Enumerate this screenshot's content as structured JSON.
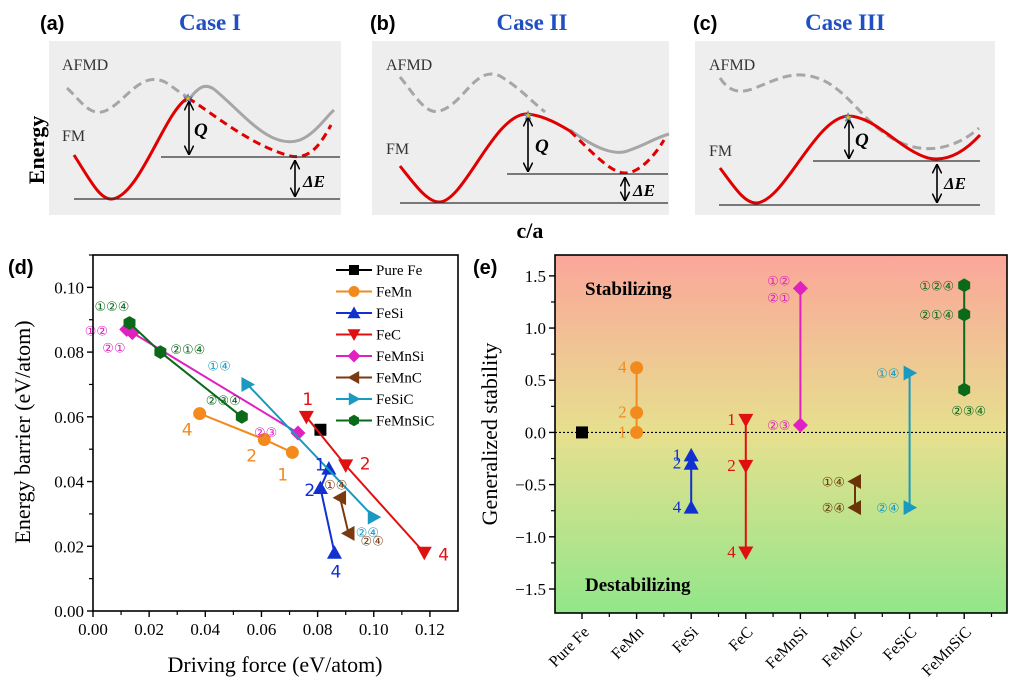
{
  "top_panels": {
    "ylabel": "Energy",
    "xlabel": "c/a",
    "panels": [
      {
        "tag": "(a)",
        "title": "Case I",
        "afmd_label": "AFMD",
        "fm_label": "FM",
        "q_label": "Q",
        "de_label": "ΔE"
      },
      {
        "tag": "(b)",
        "title": "Case II",
        "afmd_label": "AFMD",
        "fm_label": "FM",
        "q_label": "Q",
        "de_label": "ΔE"
      },
      {
        "tag": "(c)",
        "title": "Case III",
        "afmd_label": "AFMD",
        "fm_label": "FM",
        "q_label": "Q",
        "de_label": "ΔE"
      }
    ],
    "colors": {
      "fm": "#e00000",
      "afmd": "#a6a6a6",
      "panel_bg": "#eeeeee",
      "star": "#e8c000"
    }
  },
  "chart_data": [
    {
      "id": "d",
      "tag": "(d)",
      "type": "line",
      "xlabel": "Driving force (eV/atom)",
      "ylabel": "Energy barrier (eV/atom)",
      "xlim": [
        0.0,
        0.13
      ],
      "ylim": [
        0.0,
        0.11
      ],
      "xticks": [
        "0.00",
        "0.02",
        "0.04",
        "0.06",
        "0.08",
        "0.10",
        "0.12"
      ],
      "xtick_values": [
        0.0,
        0.02,
        0.04,
        0.06,
        0.08,
        0.1,
        0.12
      ],
      "yticks": [
        "0.00",
        "0.02",
        "0.04",
        "0.06",
        "0.08",
        "0.10"
      ],
      "ytick_values": [
        0.0,
        0.02,
        0.04,
        0.06,
        0.08,
        0.1
      ],
      "legend_position": "top-right",
      "series": [
        {
          "name": "Pure Fe",
          "color": "#000000",
          "marker": "square",
          "points": [
            {
              "x": 0.081,
              "y": 0.056,
              "label": ""
            }
          ]
        },
        {
          "name": "FeMn",
          "color": "#f28a1e",
          "marker": "circle",
          "points": [
            {
              "x": 0.038,
              "y": 0.061,
              "label": "4"
            },
            {
              "x": 0.061,
              "y": 0.053,
              "label": "2"
            },
            {
              "x": 0.071,
              "y": 0.049,
              "label": "1"
            }
          ]
        },
        {
          "name": "FeSi",
          "color": "#1030d0",
          "marker": "triangle-up",
          "points": [
            {
              "x": 0.084,
              "y": 0.044,
              "label": "1"
            },
            {
              "x": 0.081,
              "y": 0.038,
              "label": "2"
            },
            {
              "x": 0.086,
              "y": 0.018,
              "label": "4"
            }
          ]
        },
        {
          "name": "FeC",
          "color": "#e01010",
          "marker": "triangle-down",
          "points": [
            {
              "x": 0.076,
              "y": 0.06,
              "label": "1"
            },
            {
              "x": 0.09,
              "y": 0.045,
              "label": "2"
            },
            {
              "x": 0.118,
              "y": 0.018,
              "label": "4"
            }
          ]
        },
        {
          "name": "FeMnSi",
          "color": "#e020c0",
          "marker": "diamond",
          "points": [
            {
              "x": 0.012,
              "y": 0.087,
              "label": "①②"
            },
            {
              "x": 0.014,
              "y": 0.086,
              "label": "②①"
            },
            {
              "x": 0.073,
              "y": 0.055,
              "label": "②③"
            }
          ]
        },
        {
          "name": "FeMnC",
          "color": "#7a3a10",
          "marker": "triangle-left",
          "points": [
            {
              "x": 0.088,
              "y": 0.035,
              "label": "①④"
            },
            {
              "x": 0.091,
              "y": 0.024,
              "label": "②④"
            }
          ]
        },
        {
          "name": "FeSiC",
          "color": "#1a9ac0",
          "marker": "triangle-right",
          "points": [
            {
              "x": 0.055,
              "y": 0.07,
              "label": "①④"
            },
            {
              "x": 0.1,
              "y": 0.029,
              "label": "②④"
            }
          ]
        },
        {
          "name": "FeMnSiC",
          "color": "#0a6a1a",
          "marker": "hexagon",
          "points": [
            {
              "x": 0.013,
              "y": 0.089,
              "label": "①②④"
            },
            {
              "x": 0.024,
              "y": 0.08,
              "label": "②①④"
            },
            {
              "x": 0.053,
              "y": 0.06,
              "label": "②③④"
            }
          ]
        }
      ]
    },
    {
      "id": "e",
      "tag": "(e)",
      "type": "scatter",
      "xlabel": "",
      "ylabel": "Generalized stability",
      "ylim": [
        -1.73,
        1.7
      ],
      "yticks": [
        "−1.5",
        "−1.0",
        "−0.5",
        "0.0",
        "0.5",
        "1.0",
        "1.5"
      ],
      "ytick_values": [
        -1.5,
        -1.0,
        -0.5,
        0.0,
        0.5,
        1.0,
        1.5
      ],
      "categories": [
        "Pure Fe",
        "FeMn",
        "FeSi",
        "FeC",
        "FeMnSi",
        "FeMnC",
        "FeSiC",
        "FeMnSiC"
      ],
      "reference_line": 0.0,
      "annotations": {
        "top": "Stabilizing",
        "bottom": "Destabilizing"
      },
      "background_gradient": {
        "top": "#fba69a",
        "middle": "#e6e08e",
        "bottom": "#92e68a"
      },
      "grid": false,
      "series": [
        {
          "name": "Pure Fe",
          "category": "Pure Fe",
          "color": "#000000",
          "marker": "square",
          "points": [
            {
              "y": 0.0,
              "label": ""
            }
          ]
        },
        {
          "name": "FeMn",
          "category": "FeMn",
          "color": "#f28a1e",
          "marker": "circle",
          "points": [
            {
              "y": 0.0,
              "label": "1"
            },
            {
              "y": 0.19,
              "label": "2"
            },
            {
              "y": 0.62,
              "label": "4"
            }
          ]
        },
        {
          "name": "FeSi",
          "category": "FeSi",
          "color": "#1030d0",
          "marker": "triangle-up",
          "points": [
            {
              "y": -0.22,
              "label": "1"
            },
            {
              "y": -0.3,
              "label": "2"
            },
            {
              "y": -0.72,
              "label": "4"
            }
          ]
        },
        {
          "name": "FeC",
          "category": "FeC",
          "color": "#e01010",
          "marker": "triangle-down",
          "points": [
            {
              "y": 0.12,
              "label": "1"
            },
            {
              "y": -0.32,
              "label": "2"
            },
            {
              "y": -1.15,
              "label": "4"
            }
          ]
        },
        {
          "name": "FeMnSi",
          "category": "FeMnSi",
          "color": "#e020c0",
          "marker": "diamond",
          "points": [
            {
              "y": 1.38,
              "label": "①②\n②①"
            },
            {
              "y": 0.07,
              "label": "②③"
            }
          ]
        },
        {
          "name": "FeMnC",
          "category": "FeMnC",
          "color": "#6a3408",
          "marker": "triangle-left",
          "points": [
            {
              "y": -0.47,
              "label": "①④"
            },
            {
              "y": -0.72,
              "label": "②④"
            }
          ]
        },
        {
          "name": "FeSiC",
          "category": "FeSiC",
          "color": "#1a9ac0",
          "marker": "triangle-right",
          "points": [
            {
              "y": 0.57,
              "label": "①④"
            },
            {
              "y": -0.72,
              "label": "②④"
            }
          ]
        },
        {
          "name": "FeMnSiC",
          "category": "FeMnSiC",
          "color": "#0a6a1a",
          "marker": "hexagon",
          "points": [
            {
              "y": 1.41,
              "label": "①②④"
            },
            {
              "y": 1.13,
              "label": "②①④"
            },
            {
              "y": 0.41,
              "label": "②③④"
            }
          ]
        }
      ]
    }
  ]
}
